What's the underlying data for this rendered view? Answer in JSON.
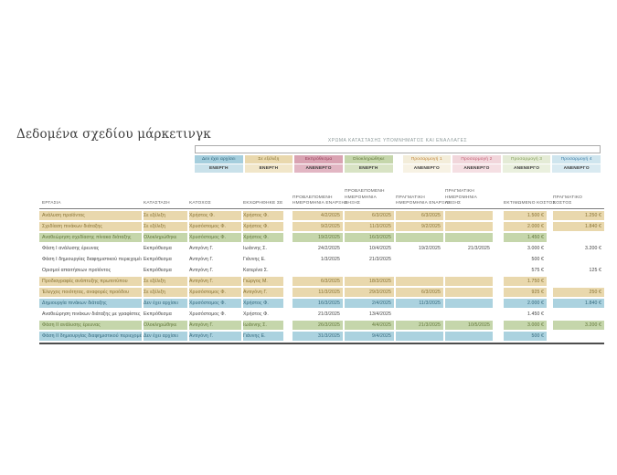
{
  "title": "Δεδομένα σχεδίου μάρκετινγκ",
  "legend": {
    "caption": "ΧΡΩΜΑ ΚΑΤΑΣΤΑΣΗΣ ΥΠΟΜΝΗΜΑΤΟΣ ΚΑΙ ΕΝΑΛΛΑΓΕΣ",
    "items": [
      {
        "label": "Δεν έχει αρχίσει",
        "state": "ΕΝΕΡΓΗ",
        "bg": "#a5cedd",
        "fg": "#2b6177",
        "state_bg": "#c9e1ea"
      },
      {
        "label": "Σε εξέλιξη",
        "state": "ΕΝΕΡΓΗ",
        "bg": "#e9d8ad",
        "fg": "#857030",
        "state_bg": "#f1e6c9"
      },
      {
        "label": "Εκπρόθεσμα",
        "state": "ΑΝΕΝΕΡΓΟ",
        "bg": "#d9a3b2",
        "fg": "#943a56",
        "state_bg": "#e2b6c3"
      },
      {
        "label": "Ολοκληρώθηκε",
        "state": "ΕΝΕΡΓΗ",
        "bg": "#c5d6ab",
        "fg": "#5f7436",
        "state_bg": "#d8e3c4"
      },
      {
        "label": "Προσαρμογή 1",
        "state": "ΑΝΕΝΕΡΓΟ",
        "bg": "#f3edda",
        "fg": "#c07f2f",
        "state_bg": "#f7f2e4"
      },
      {
        "label": "Προσαρμογή 2",
        "state": "ΑΝΕΝΕΡΓΟ",
        "bg": "#f1d6db",
        "fg": "#c2596f",
        "state_bg": "#f5dfe3"
      },
      {
        "label": "Προσαρμογή 3",
        "state": "ΑΝΕΝΕΡΓΟ",
        "bg": "#e4ebd6",
        "fg": "#7e9c52",
        "state_bg": "#eaf0de"
      },
      {
        "label": "Προσαρμογή 4",
        "state": "ΑΝΕΝΕΡΓΟ",
        "bg": "#cfe5ee",
        "fg": "#3679a4",
        "state_bg": "#d9eaf1"
      }
    ]
  },
  "table": {
    "columns": [
      {
        "lines": [
          "ΕΡΓΑΣΙΑ"
        ]
      },
      {
        "lines": [
          "ΚΑΤΑΣΤΑΣΗ"
        ]
      },
      {
        "lines": [
          "ΚΑΤΟΧΟΣ"
        ]
      },
      {
        "lines": [
          "ΕΚΧΩΡΗΘΗΚΕ ΣΕ"
        ]
      },
      {
        "lines": [
          "ΠΡΟΒΛΕΠΟΜΕΝΗ",
          "ΗΜΕΡΟΜΗΝΙΑ ΕΝΑΡΞΗΣ"
        ]
      },
      {
        "lines": [
          "ΠΡΟΒΛΕΠΟΜΕΝΗ",
          "ΗΜΕΡΟΜΗΝΙΑ",
          "ΛΗΞΗΣ"
        ]
      },
      {
        "lines": [
          "ΠΡΑΓΜΑΤΙΚΗ",
          "ΗΜΕΡΟΜΗΝΙΑ ΕΝΑΡΞΗΣ"
        ]
      },
      {
        "lines": [
          "ΠΡΑΓΜΑΤΙΚΗ",
          "ΗΜΕΡΟΜΗΝΙΑ",
          "ΛΗΞΗΣ"
        ]
      },
      {
        "lines": [
          "ΕΚΤΙΜΩΜΕΝΟ ΚΟΣΤΟΣ"
        ]
      },
      {
        "lines": [
          "ΠΡΑΓΜΑΤΙΚΟ",
          "ΚΟΣΤΟΣ"
        ]
      }
    ],
    "rows": [
      {
        "task": "Ανάλυση προϊόντος",
        "status": "Σε εξέλιξη",
        "owner": "Χρήστος Φ.",
        "assigned": "Χρήστος Φ.",
        "prob_start": "4/2/2025",
        "prob_end": "6/3/2025",
        "act_start": "6/3/2025",
        "act_end": "",
        "est_cost": "1.500 €",
        "act_cost": "1.250 €",
        "style": "inprogress"
      },
      {
        "task": "Σχεδίαση πινάκων διάταξης",
        "status": "Σε εξέλιξη",
        "owner": "Χρυσόστομος Φ.",
        "assigned": "Χρήστος Φ.",
        "prob_start": "9/2/2025",
        "prob_end": "11/3/2025",
        "act_start": "9/2/2025",
        "act_end": "",
        "est_cost": "2.000 €",
        "act_cost": "1.840 €",
        "style": "inprogress"
      },
      {
        "task": "Αναθεώρηση σχεδίασης πίνακα διάταξης",
        "status": "Ολοκληρώθηκε",
        "owner": "Χρυσόστομος Φ.",
        "assigned": "Χρήστος Φ.",
        "prob_start": "19/2/2025",
        "prob_end": "16/3/2025",
        "act_start": "",
        "act_end": "",
        "est_cost": "1.450 €",
        "act_cost": "",
        "style": "complete"
      },
      {
        "task": "Φάση Ι ανάλυσης έρευνας",
        "status": "Εκπρόθεσμα",
        "owner": "Αντιγόνη Γ.",
        "assigned": "Ιωάννης Σ.",
        "prob_start": "24/2/2025",
        "prob_end": "10/4/2025",
        "act_start": "19/2/2025",
        "act_end": "21/3/2025",
        "est_cost": "3.000 €",
        "act_cost": "3.200 €",
        "style": "overdue"
      },
      {
        "task": "Φάση Ι δημιουργίας διαφημιστικού περιεχομένου",
        "status": "Εκπρόθεσμα",
        "owner": "Αντιγόνη Γ.",
        "assigned": "Γιάννης Ε.",
        "prob_start": "1/3/2025",
        "prob_end": "21/3/2025",
        "act_start": "",
        "act_end": "",
        "est_cost": "500 €",
        "act_cost": "",
        "style": "overdue"
      },
      {
        "task": "Ορισμοί απαιτήσεων προϊόντος",
        "status": "Εκπρόθεσμα",
        "owner": "Αντιγόνη Γ.",
        "assigned": "Κατερίνα Σ.",
        "prob_start": "",
        "prob_end": "",
        "act_start": "",
        "act_end": "",
        "est_cost": "575 €",
        "act_cost": "125 €",
        "style": "overdue"
      },
      {
        "task": "Προδιαγραφές ανάπτυξης πρωτοτύπου",
        "status": "Σε εξέλιξη",
        "owner": "Αντιγόνη Γ.",
        "assigned": "Γιώργος Μ.",
        "prob_start": "6/3/2025",
        "prob_end": "18/3/2025",
        "act_start": "",
        "act_end": "",
        "est_cost": "1.750 €",
        "act_cost": "",
        "style": "inprogress"
      },
      {
        "task": "Έλεγχος ποιότητας, αναφορές προόδου",
        "status": "Σε εξέλιξη",
        "owner": "Χρυσόστομος Φ.",
        "assigned": "Αντιγόνη Γ.",
        "prob_start": "11/3/2025",
        "prob_end": "29/3/2025",
        "act_start": "6/3/2025",
        "act_end": "",
        "est_cost": "925 €",
        "act_cost": "250 €",
        "style": "inprogress"
      },
      {
        "task": "Δημιουργία πινάκων διάταξης",
        "status": "Δεν έχει αρχίσει",
        "owner": "Χρυσόστομος Φ.",
        "assigned": "Χρήστος Φ.",
        "prob_start": "16/3/2025",
        "prob_end": "2/4/2025",
        "act_start": "11/3/2025",
        "act_end": "",
        "est_cost": "2.000 €",
        "act_cost": "1.840 €",
        "style": "notstarted"
      },
      {
        "task": "Αναθεώρηση πινάκων διάταξης με γραφίστες",
        "status": "Εκπρόθεσμα",
        "owner": "Χρυσόστομος Φ.",
        "assigned": "Χρήστος Φ.",
        "prob_start": "21/3/2025",
        "prob_end": "13/4/2025",
        "act_start": "",
        "act_end": "",
        "est_cost": "1.450 €",
        "act_cost": "",
        "style": "overdue"
      },
      {
        "task": "Φάση ΙΙ ανάλυσης έρευνας",
        "status": "Ολοκληρώθηκε",
        "owner": "Αντιγόνη Γ.",
        "assigned": "Ιωάννης Σ.",
        "prob_start": "26/3/2025",
        "prob_end": "4/4/2025",
        "act_start": "21/3/2025",
        "act_end": "10/5/2025",
        "est_cost": "3.000 €",
        "act_cost": "3.200 €",
        "style": "complete"
      },
      {
        "task": "Φάση ΙΙ δημιουργίας διαφημιστικού περιεχομένου",
        "status": "Δεν έχει αρχίσει",
        "owner": "Αντιγόνη Γ.",
        "assigned": "Γιάννης Ε.",
        "prob_start": "31/3/2025",
        "prob_end": "9/4/2025",
        "act_start": "",
        "act_end": "",
        "est_cost": "500 €",
        "act_cost": "",
        "style": "notstarted"
      }
    ]
  },
  "colors": {
    "row_styles": {
      "inprogress": {
        "bg": "#e9d8ad",
        "fg": "#857030"
      },
      "complete": {
        "bg": "#c5d6ab",
        "fg": "#5f7436"
      },
      "notstarted": {
        "bg": "#abd2df",
        "fg": "#2f6579"
      },
      "overdue": {
        "bg": "",
        "fg": "#404040"
      }
    },
    "header_text": "#595959",
    "title_text": "#3f3f3f",
    "caption_text": "#8b9898",
    "table_bottom_border": "#4d4d4d"
  }
}
